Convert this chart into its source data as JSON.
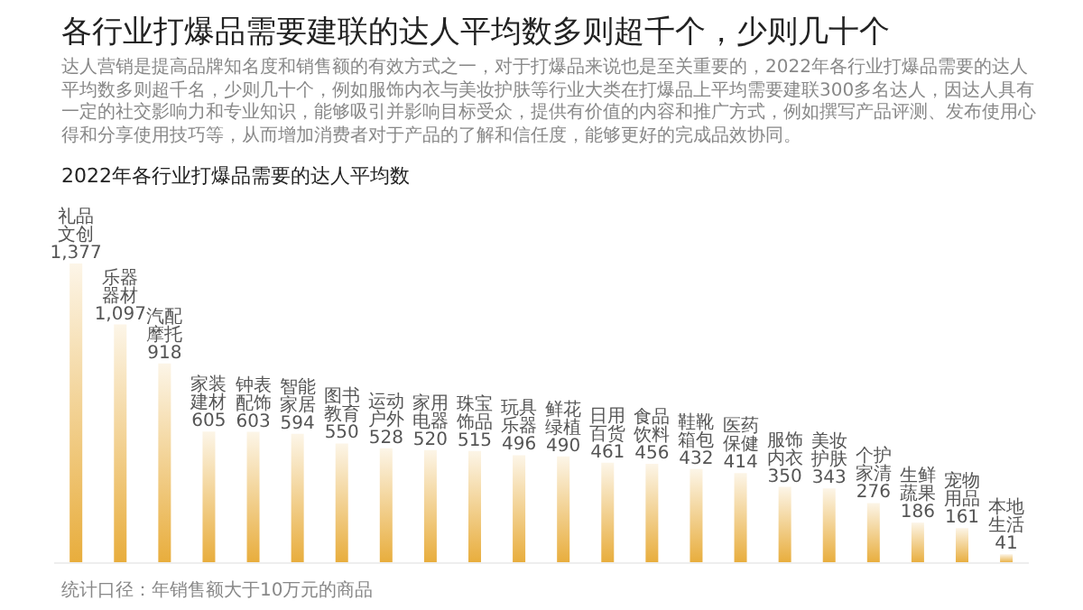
{
  "chart_data": {
    "type": "bar",
    "title": "各行业打爆品需要建联的达人平均数多则超千个，少则几十个",
    "subtitle": "2022年各行业打爆品需要的达人平均数",
    "annotations": [
      "达人营销是提高品牌知名度和销售额的有效方式之一，对于打爆品来说也是至关重要的，2022年各行业打爆品需要的达人平均数多则超千名，少则几十个，例如服饰内衣与美妆护肤等行业大类在打爆品上平均需要建联300多名达人，因达人具有一定的社交影响力和专业知识，能够吸引并影响目标受众，提供有价值的内容和推广方式，例如撰写产品评测、发布使用心得和分享使用技巧等，从而增加消费者对于产品的了解和信任度，能够更好的完成品效协同。",
      "统计口径：年销售额大于10万元的商品"
    ],
    "categories": [
      "礼品文创",
      "乐器器材",
      "汽配摩托",
      "家装建材",
      "钟表配饰",
      "智能家居",
      "图书教育",
      "运动户外",
      "家用电器",
      "珠宝饰品",
      "玩具乐器",
      "鲜花绿植",
      "日用百货",
      "食品饮料",
      "鞋靴箱包",
      "医药保健",
      "服饰内衣",
      "美妆护肤",
      "个护家清",
      "生鲜蔬果",
      "宠物用品",
      "本地生活"
    ],
    "values": [
      1377,
      1097,
      918,
      605,
      603,
      594,
      550,
      528,
      520,
      515,
      496,
      490,
      461,
      456,
      432,
      414,
      350,
      343,
      276,
      186,
      161,
      41
    ],
    "value_labels": [
      "1,377",
      "1,097",
      "918",
      "605",
      "603",
      "594",
      "550",
      "528",
      "520",
      "515",
      "496",
      "490",
      "461",
      "456",
      "432",
      "414",
      "350",
      "343",
      "276",
      "186",
      "161",
      "41"
    ],
    "color": "#e8ad3c"
  }
}
